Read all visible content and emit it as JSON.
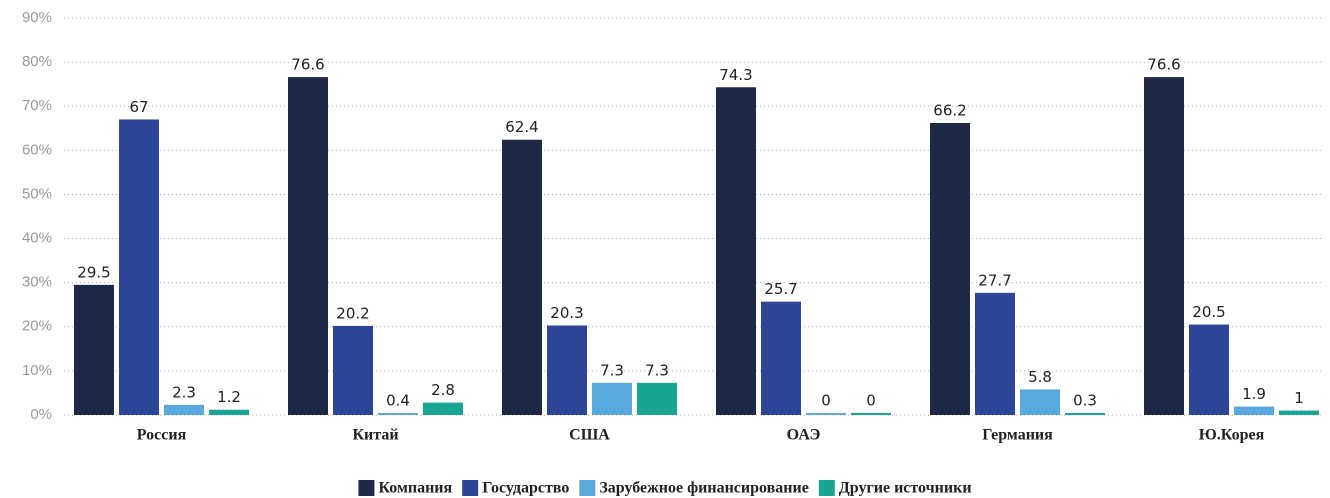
{
  "chart_data": {
    "type": "bar",
    "categories": [
      "Россия",
      "Китай",
      "США",
      "ОАЭ",
      "Германия",
      "Ю.Корея"
    ],
    "series": [
      {
        "name": "Компания",
        "color": "#1c2846",
        "values": [
          29.5,
          76.6,
          62.4,
          74.3,
          66.2,
          76.6
        ]
      },
      {
        "name": "Государство",
        "color": "#2d4597",
        "values": [
          67,
          20.2,
          20.3,
          25.7,
          27.7,
          20.5
        ]
      },
      {
        "name": "Зарубежное финансирование",
        "color": "#5aa9de",
        "values": [
          2.3,
          0.4,
          7.3,
          0,
          5.8,
          1.9
        ]
      },
      {
        "name": "Другие источники",
        "color": "#18a594",
        "values": [
          1.2,
          2.8,
          7.3,
          0,
          0.3,
          1
        ]
      }
    ],
    "ylim": [
      0,
      90
    ],
    "yticks": [
      {
        "value": 0,
        "label": "0%"
      },
      {
        "value": 10,
        "label": "10%"
      },
      {
        "value": 20,
        "label": "20%"
      },
      {
        "value": 30,
        "label": "30%"
      },
      {
        "value": 40,
        "label": "40%"
      },
      {
        "value": 50,
        "label": "50%"
      },
      {
        "value": 60,
        "label": "60%"
      },
      {
        "value": 70,
        "label": "70%"
      },
      {
        "value": 80,
        "label": "80%"
      },
      {
        "value": 90,
        "label": "90%"
      }
    ],
    "grid": true,
    "legend": "bottom"
  }
}
